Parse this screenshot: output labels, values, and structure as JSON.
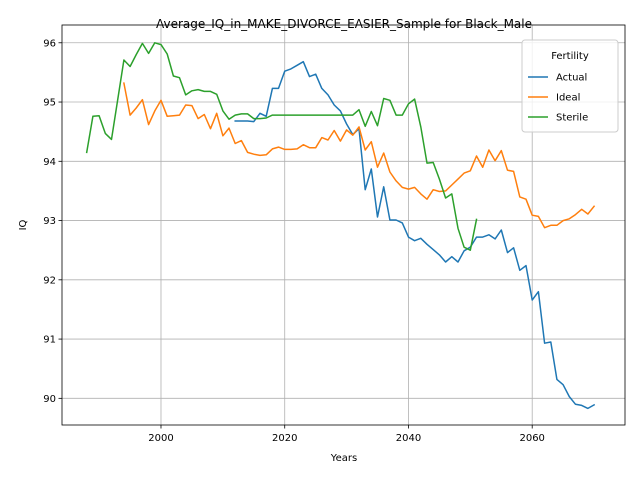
{
  "chart_data": {
    "type": "line",
    "title": "Average_IQ_in_MAKE_DIVORCE_EASIER_Sample for Black_Male",
    "xlabel": "Years",
    "ylabel": "IQ",
    "xlim": [
      1984,
      2075
    ],
    "ylim": [
      89.55,
      96.3
    ],
    "xticks": [
      2000,
      2020,
      2040,
      2060
    ],
    "yticks": [
      90,
      91,
      92,
      93,
      94,
      95,
      96
    ],
    "grid": true,
    "legend": {
      "title": "Fertility",
      "position": "upper right"
    },
    "series": [
      {
        "name": "Actual",
        "color": "#1f77b4",
        "x": [
          2012,
          2013,
          2014,
          2015,
          2016,
          2017,
          2018,
          2019,
          2020,
          2021,
          2022,
          2023,
          2024,
          2025,
          2026,
          2027,
          2028,
          2029,
          2030,
          2031,
          2032,
          2033,
          2034,
          2035,
          2036,
          2037,
          2038,
          2039,
          2040,
          2041,
          2042,
          2043,
          2044,
          2045,
          2046,
          2047,
          2048,
          2049,
          2050,
          2051,
          2052,
          2053,
          2054,
          2055,
          2056,
          2057,
          2058,
          2059,
          2060,
          2061,
          2062,
          2063,
          2064,
          2065,
          2066,
          2067,
          2068,
          2069,
          2070
        ],
        "y": [
          94.68,
          94.68,
          94.68,
          94.67,
          94.81,
          94.76,
          95.23,
          95.23,
          95.52,
          95.56,
          95.62,
          95.68,
          95.43,
          95.47,
          95.23,
          95.12,
          94.95,
          94.85,
          94.63,
          94.45,
          94.55,
          93.52,
          93.87,
          93.06,
          93.57,
          93.01,
          93.01,
          92.96,
          92.72,
          92.66,
          92.7,
          92.6,
          92.51,
          92.42,
          92.3,
          92.39,
          92.3,
          92.49,
          92.55,
          92.72,
          92.72,
          92.76,
          92.69,
          92.84,
          92.46,
          92.54,
          92.16,
          92.24,
          91.66,
          91.8,
          90.93,
          90.95,
          90.32,
          90.23,
          90.03,
          89.9,
          89.88,
          89.83,
          89.89
        ]
      },
      {
        "name": "Ideal",
        "color": "#ff7f0e",
        "x": [
          1994,
          1995,
          1996,
          1997,
          1998,
          1999,
          2000,
          2001,
          2002,
          2003,
          2004,
          2005,
          2006,
          2007,
          2008,
          2009,
          2010,
          2011,
          2012,
          2013,
          2014,
          2015,
          2016,
          2017,
          2018,
          2019,
          2020,
          2021,
          2022,
          2023,
          2024,
          2025,
          2026,
          2027,
          2028,
          2029,
          2030,
          2031,
          2032,
          2033,
          2034,
          2035,
          2036,
          2037,
          2038,
          2039,
          2040,
          2041,
          2042,
          2043,
          2044,
          2045,
          2046,
          2047,
          2048,
          2049,
          2050,
          2051,
          2052,
          2053,
          2054,
          2055,
          2056,
          2057,
          2058,
          2059,
          2060,
          2061,
          2062,
          2063,
          2064,
          2065,
          2066,
          2067,
          2068,
          2069,
          2070
        ],
        "y": [
          95.32,
          94.78,
          94.9,
          95.04,
          94.62,
          94.85,
          95.03,
          94.76,
          94.77,
          94.78,
          94.95,
          94.94,
          94.72,
          94.79,
          94.55,
          94.81,
          94.43,
          94.56,
          94.3,
          94.35,
          94.15,
          94.12,
          94.1,
          94.11,
          94.21,
          94.24,
          94.2,
          94.2,
          94.21,
          94.28,
          94.23,
          94.23,
          94.4,
          94.36,
          94.52,
          94.34,
          94.53,
          94.44,
          94.58,
          94.19,
          94.33,
          93.9,
          94.14,
          93.82,
          93.67,
          93.56,
          93.53,
          93.56,
          93.45,
          93.36,
          93.52,
          93.49,
          93.5,
          93.6,
          93.7,
          93.8,
          93.84,
          94.09,
          93.9,
          94.19,
          94.01,
          94.18,
          93.85,
          93.83,
          93.4,
          93.36,
          93.09,
          93.07,
          92.88,
          92.92,
          92.92,
          93.0,
          93.03,
          93.1,
          93.19,
          93.11,
          93.24
        ]
      },
      {
        "name": "Sterile",
        "color": "#2ca02c",
        "x": [
          1988,
          1989,
          1990,
          1991,
          1992,
          1993,
          1994,
          1995,
          1996,
          1997,
          1998,
          1999,
          2000,
          2001,
          2002,
          2003,
          2004,
          2005,
          2006,
          2007,
          2008,
          2009,
          2010,
          2011,
          2012,
          2013,
          2014,
          2015,
          2016,
          2017,
          2018,
          2019,
          2020,
          2021,
          2022,
          2023,
          2024,
          2025,
          2026,
          2027,
          2028,
          2029,
          2030,
          2031,
          2032,
          2033,
          2034,
          2035,
          2036,
          2037,
          2038,
          2039,
          2040,
          2041,
          2042,
          2043,
          2044,
          2045,
          2046,
          2047,
          2048,
          2049,
          2050,
          2051
        ],
        "y": [
          94.15,
          94.76,
          94.77,
          94.47,
          94.37,
          95.04,
          95.71,
          95.6,
          95.8,
          95.99,
          95.82,
          96.0,
          95.97,
          95.81,
          95.44,
          95.41,
          95.12,
          95.19,
          95.21,
          95.18,
          95.18,
          95.13,
          94.85,
          94.71,
          94.78,
          94.8,
          94.8,
          94.72,
          94.72,
          94.73,
          94.78,
          94.78,
          94.78,
          94.78,
          94.78,
          94.78,
          94.78,
          94.78,
          94.78,
          94.78,
          94.78,
          94.78,
          94.78,
          94.78,
          94.87,
          94.59,
          94.84,
          94.6,
          95.06,
          95.03,
          94.78,
          94.78,
          94.97,
          95.05,
          94.58,
          93.97,
          93.98,
          93.7,
          93.38,
          93.45,
          92.87,
          92.55,
          92.5,
          93.02
        ]
      }
    ]
  }
}
